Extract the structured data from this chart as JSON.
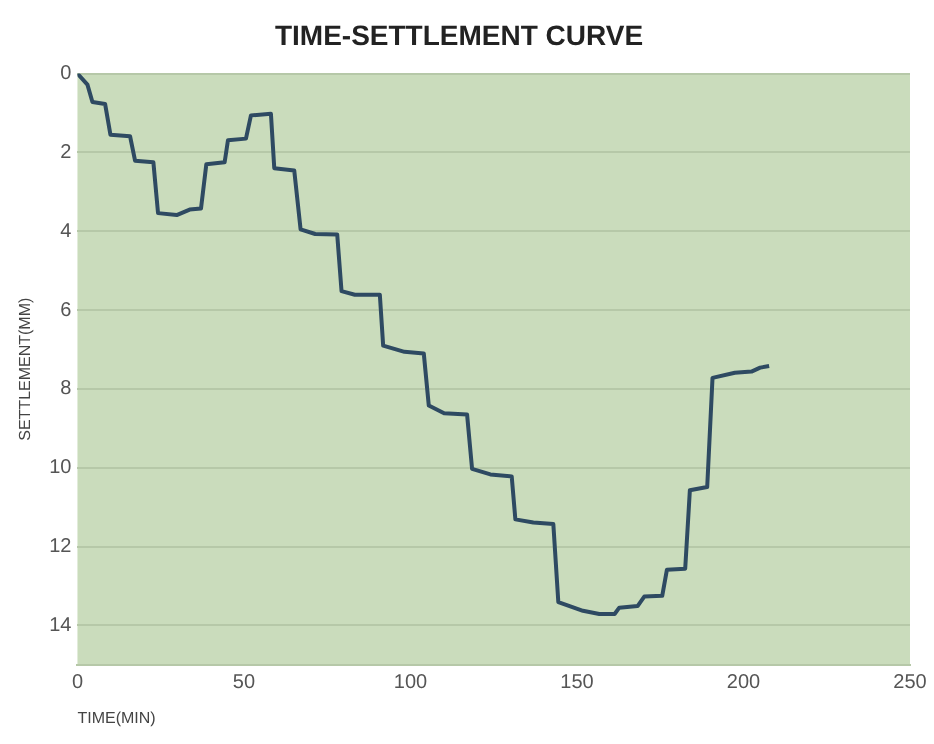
{
  "chart_data": {
    "type": "line",
    "title": "TIME-SETTLEMENT CURVE",
    "xlabel": "TIME(MIN)",
    "ylabel": "SETTLEMENT(MM)",
    "x": [
      0,
      3,
      4.5,
      8.3,
      9.9,
      15.8,
      17.3,
      22.8,
      24.2,
      29.8,
      33.7,
      37.1,
      38.7,
      44.2,
      45.2,
      50.6,
      52.1,
      58.1,
      59.1,
      65.1,
      67,
      71.4,
      78,
      79.3,
      83.3,
      90.8,
      91.8,
      98.2,
      104,
      105.5,
      110.1,
      117,
      118.5,
      124,
      130.4,
      131.5,
      136.9,
      142.9,
      144.4,
      151.8,
      156.7,
      161.3,
      162.7,
      168.2,
      170.2,
      175.6,
      177,
      182.5,
      183.9,
      189.1,
      190.7,
      197.4,
      202.4,
      205,
      207.7
    ],
    "series": [
      {
        "color": "#2e4a62",
        "values": [
          0,
          0.28,
          0.72,
          0.77,
          1.55,
          1.59,
          2.21,
          2.25,
          3.54,
          3.59,
          3.45,
          3.42,
          2.3,
          2.25,
          1.69,
          1.65,
          1.06,
          1.02,
          2.4,
          2.46,
          3.95,
          4.07,
          4.08,
          5.52,
          5.61,
          5.61,
          6.9,
          7.06,
          7.1,
          8.42,
          8.62,
          8.65,
          10.03,
          10.17,
          10.22,
          11.31,
          11.39,
          11.43,
          13.41,
          13.63,
          13.71,
          13.71,
          13.55,
          13.51,
          13.27,
          13.25,
          12.59,
          12.56,
          10.57,
          10.49,
          7.72,
          7.59,
          7.56,
          7.46,
          7.42
        ]
      }
    ],
    "xlim": [
      0,
      250
    ],
    "xticks": [
      0,
      50,
      100,
      150,
      200,
      250
    ],
    "ylim": [
      15,
      0
    ],
    "yticks": [
      0,
      2,
      4,
      6,
      8,
      10,
      12,
      14
    ],
    "grid": "y",
    "legend": false,
    "marker": "none",
    "line_style": "solid"
  }
}
